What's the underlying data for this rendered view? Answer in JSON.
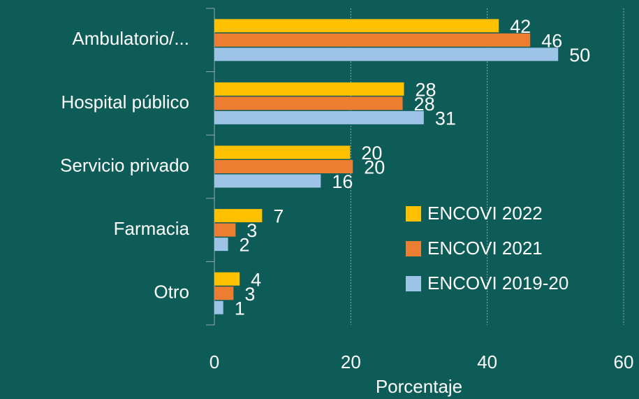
{
  "chart_data": {
    "type": "bar",
    "orientation": "horizontal",
    "x_label": "Porcentaje",
    "categories": [
      "Ambulatorio/...",
      "Hospital público",
      "Servicio privado",
      "Farmacia",
      "Otro"
    ],
    "series": [
      {
        "name": "ENCOVI 2022",
        "color": "#ffc000",
        "values": [
          41.7,
          27.8,
          19.9,
          7.0,
          3.7
        ],
        "value_labels": [
          "42",
          "28",
          "20",
          "7",
          "4"
        ]
      },
      {
        "name": "ENCOVI 2021",
        "color": "#ed7d31",
        "values": [
          46.3,
          27.6,
          20.3,
          3.1,
          2.8
        ],
        "value_labels": [
          "46",
          "28",
          "20",
          "3",
          "3"
        ]
      },
      {
        "name": "ENCOVI 2019-20",
        "color": "#9dc3e6",
        "values": [
          50.4,
          30.7,
          15.6,
          2.0,
          1.3
        ],
        "value_labels": [
          "50",
          "31",
          "16",
          "2",
          "1"
        ]
      }
    ],
    "xlim": [
      0,
      60
    ],
    "xticks": [
      0,
      20,
      40,
      60
    ],
    "grid": true,
    "legend": "right"
  }
}
